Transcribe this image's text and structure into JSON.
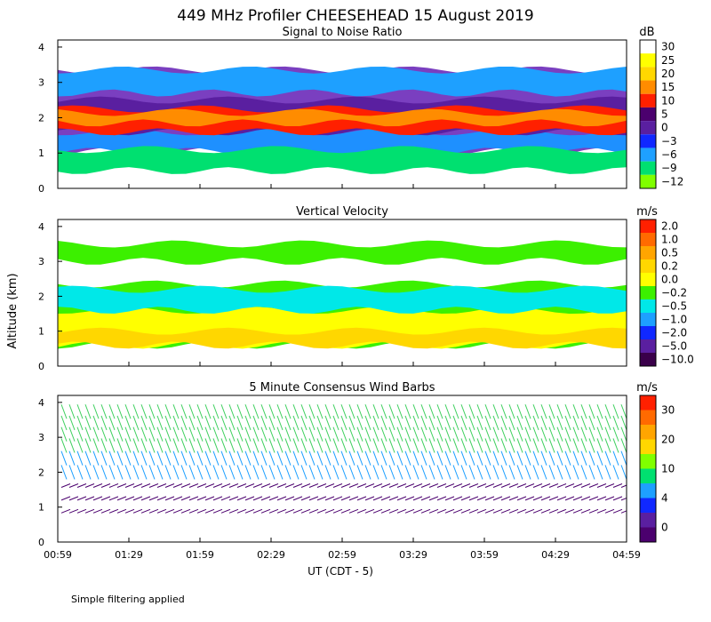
{
  "figure": {
    "title": "449 MHz Profiler CHEESEHEAD 15 August 2019",
    "ylabel": "Altitude (km)",
    "xlabel": "UT  (CDT - 5)",
    "footnote": "Simple filtering applied"
  },
  "chart_data": [
    {
      "type": "heatmap",
      "title": "Signal to Noise Ratio",
      "units": "dB",
      "x_ticks": [
        "00:59",
        "01:29",
        "01:59",
        "02:29",
        "02:59",
        "03:29",
        "03:59",
        "04:29",
        "04:59"
      ],
      "y_ticks": [
        "0",
        "1",
        "2",
        "3",
        "4"
      ],
      "ylim": [
        0,
        4.2
      ],
      "colorbar": {
        "labels": [
          "30",
          "25",
          "20",
          "15",
          "10",
          "5",
          "0",
          "−3",
          "−6",
          "−9",
          "−12"
        ],
        "colors": [
          "#ffffff",
          "#ffff00",
          "#ffd700",
          "#ff8c00",
          "#ff2000",
          "#4b006e",
          "#5a1fa0",
          "#1028ff",
          "#1ea0ff",
          "#00e070",
          "#80ff00"
        ]
      },
      "layers": [
        {
          "label": "5",
          "color": "#7a3fc0",
          "bottom": 1.05,
          "top": 3.35
        },
        {
          "label": "-3",
          "color": "#1e90ff",
          "bottom": 1.05,
          "top": 1.6
        },
        {
          "label": "0",
          "color": "#5a1fa0",
          "bottom": 1.6,
          "top": 2.5
        },
        {
          "label": "10",
          "color": "#ff2000",
          "bottom": 1.6,
          "top": 2.25
        },
        {
          "label": "15",
          "color": "#ff8c00",
          "bottom": 1.85,
          "top": 2.15
        },
        {
          "label": "-9",
          "color": "#00e070",
          "bottom": 0.5,
          "top": 1.1
        },
        {
          "label": "-6",
          "color": "#1ea0ff",
          "bottom": 2.7,
          "top": 3.35
        }
      ]
    },
    {
      "type": "heatmap",
      "title": "Vertical Velocity",
      "units": "m/s",
      "x_ticks": [
        "00:59",
        "01:29",
        "01:59",
        "02:29",
        "02:59",
        "03:29",
        "03:59",
        "04:29",
        "04:59"
      ],
      "y_ticks": [
        "0",
        "1",
        "2",
        "3",
        "4"
      ],
      "ylim": [
        0,
        4.2
      ],
      "colorbar": {
        "labels": [
          "2.0",
          "1.0",
          "0.5",
          "0.2",
          "0.0",
          "−0.2",
          "−0.5",
          "−1.0",
          "−2.0",
          "−5.0",
          "−10.0"
        ],
        "colors": [
          "#ff2000",
          "#ff6a00",
          "#ffa500",
          "#ffd700",
          "#ffff00",
          "#3cf000",
          "#00e8e8",
          "#1ea0ff",
          "#1028ff",
          "#5a1fa0",
          "#3a004a"
        ]
      },
      "layers": [
        {
          "label": "-0.2",
          "color": "#3cf000",
          "bottom": 0.6,
          "top": 2.35
        },
        {
          "label": "0.0",
          "color": "#ffff00",
          "bottom": 0.6,
          "top": 1.6
        },
        {
          "label": "0.2",
          "color": "#ffd700",
          "bottom": 0.6,
          "top": 1.0
        },
        {
          "label": "-0.5",
          "color": "#00e8e8",
          "bottom": 1.6,
          "top": 2.2
        },
        {
          "label": "-0.2",
          "color": "#3cf000",
          "bottom": 3.0,
          "top": 3.5
        }
      ]
    },
    {
      "type": "scatter",
      "title": "5 Minute Consensus Wind Barbs",
      "units": "m/s",
      "x_ticks": [
        "00:59",
        "01:29",
        "01:59",
        "02:29",
        "02:59",
        "03:29",
        "03:59",
        "04:29",
        "04:59"
      ],
      "y_ticks": [
        "0",
        "1",
        "2",
        "3",
        "4"
      ],
      "ylim": [
        0,
        4.2
      ],
      "colorbar": {
        "labels": [
          "30",
          "20",
          "10",
          "4",
          "0"
        ],
        "colors": [
          "#ff2000",
          "#ff6a00",
          "#ffa500",
          "#ffd700",
          "#80ff00",
          "#00e070",
          "#1ea0ff",
          "#1028ff",
          "#5a1fa0",
          "#4b006e"
        ]
      },
      "layers": [
        {
          "label": "10",
          "color": "#40d060",
          "bottom": 2.6,
          "top": 3.9
        },
        {
          "label": "4",
          "color": "#1ea0ff",
          "bottom": 1.8,
          "top": 2.6
        },
        {
          "label": "0",
          "color": "#4b006e",
          "bottom": 0.7,
          "top": 1.8
        }
      ]
    }
  ]
}
